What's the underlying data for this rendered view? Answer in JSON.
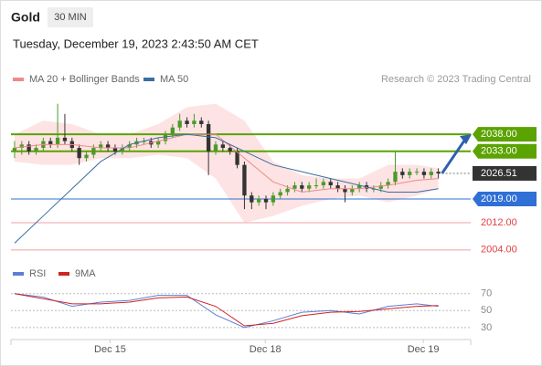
{
  "header": {
    "symbol": "Gold",
    "interval": "30 MIN",
    "timestamp": "Tuesday, December 19, 2023 2:43:50 AM CET"
  },
  "chart_data": {
    "type": "candlestick",
    "source": "Research © 2023 Trading Central",
    "ylim": [
      2001,
      2052
    ],
    "xlim": [
      -0.5,
      63.5
    ],
    "xticks": [
      {
        "value": 13.3,
        "label": "Dec 15"
      },
      {
        "value": 34.9,
        "label": "Dec 18"
      },
      {
        "value": 56.9,
        "label": "Dec 19"
      }
    ],
    "up_color": "#4c9a2a",
    "down_color": "#333333",
    "ohlc": [
      [
        2033,
        2036,
        2031,
        2034
      ],
      [
        2034,
        2036,
        2032,
        2035
      ],
      [
        2035,
        2036,
        2032,
        2033
      ],
      [
        2033,
        2035,
        2032,
        2034
      ],
      [
        2034,
        2037,
        2033,
        2036
      ],
      [
        2036,
        2037,
        2034,
        2035
      ],
      [
        2035,
        2047,
        2034,
        2037
      ],
      [
        2037,
        2044,
        2035,
        2036
      ],
      [
        2036,
        2037,
        2033,
        2034
      ],
      [
        2034,
        2035,
        2029,
        2031
      ],
      [
        2031,
        2033,
        2030,
        2032
      ],
      [
        2032,
        2035,
        2031,
        2034
      ],
      [
        2034,
        2036,
        2033,
        2035
      ],
      [
        2035,
        2036,
        2033,
        2034
      ],
      [
        2034,
        2035,
        2032,
        2033
      ],
      [
        2033,
        2035,
        2032,
        2034
      ],
      [
        2034,
        2036,
        2033,
        2035
      ],
      [
        2035,
        2037,
        2034,
        2036
      ],
      [
        2036,
        2037,
        2035,
        2036
      ],
      [
        2036,
        2037,
        2034,
        2035
      ],
      [
        2035,
        2037,
        2034,
        2036
      ],
      [
        2036,
        2039,
        2035,
        2038
      ],
      [
        2038,
        2041,
        2037,
        2040
      ],
      [
        2040,
        2044,
        2039,
        2042
      ],
      [
        2042,
        2043,
        2040,
        2041
      ],
      [
        2041,
        2044,
        2040,
        2042
      ],
      [
        2042,
        2043,
        2040,
        2041
      ],
      [
        2041,
        2042,
        2026,
        2033
      ],
      [
        2033,
        2036,
        2032,
        2035
      ],
      [
        2035,
        2036,
        2033,
        2034
      ],
      [
        2034,
        2035,
        2032,
        2033
      ],
      [
        2033,
        2034,
        2028,
        2029
      ],
      [
        2029,
        2030,
        2016,
        2020
      ],
      [
        2020,
        2021,
        2016,
        2018
      ],
      [
        2018,
        2020,
        2017,
        2019
      ],
      [
        2019,
        2020,
        2016,
        2018
      ],
      [
        2018,
        2021,
        2017,
        2020
      ],
      [
        2020,
        2022,
        2019,
        2021
      ],
      [
        2021,
        2023,
        2020,
        2022
      ],
      [
        2022,
        2024,
        2021,
        2023
      ],
      [
        2023,
        2024,
        2021,
        2022
      ],
      [
        2022,
        2024,
        2021,
        2023
      ],
      [
        2023,
        2025,
        2022,
        2023
      ],
      [
        2023,
        2025,
        2022,
        2024
      ],
      [
        2024,
        2025,
        2022,
        2023
      ],
      [
        2023,
        2024,
        2021,
        2022
      ],
      [
        2022,
        2023,
        2018,
        2021
      ],
      [
        2021,
        2023,
        2020,
        2022
      ],
      [
        2022,
        2024,
        2021,
        2023
      ],
      [
        2023,
        2024,
        2021,
        2022
      ],
      [
        2022,
        2023,
        2021,
        2022
      ],
      [
        2022,
        2024,
        2021,
        2023
      ],
      [
        2023,
        2025,
        2022,
        2024
      ],
      [
        2024,
        2033,
        2023,
        2027
      ],
      [
        2027,
        2028,
        2025,
        2026
      ],
      [
        2026,
        2028,
        2025,
        2027
      ],
      [
        2027,
        2028,
        2026,
        2027
      ],
      [
        2027,
        2028,
        2025,
        2026
      ],
      [
        2026,
        2028,
        2025,
        2027
      ],
      [
        2027,
        2028,
        2025,
        2026.5
      ]
    ],
    "line_x": [
      0,
      4,
      8,
      12,
      16,
      20,
      24,
      28,
      32,
      36,
      40,
      44,
      48,
      52,
      56,
      59
    ],
    "series": [
      {
        "name": "MA 20 + Bollinger Bands",
        "color": "#f08a8a",
        "band_color": "#fcdcdc",
        "values": [
          2034,
          2035,
          2035,
          2034,
          2034,
          2036,
          2038,
          2038,
          2031,
          2024,
          2021,
          2022,
          2022,
          2023,
          2024.5,
          2025
        ],
        "upper": [
          2038,
          2042,
          2041,
          2038,
          2038,
          2041,
          2046,
          2047,
          2042,
          2030,
          2026,
          2025,
          2025,
          2029,
          2029,
          2028
        ],
        "lower": [
          2030,
          2029,
          2029,
          2031,
          2031,
          2032,
          2031,
          2025,
          2012,
          2014,
          2017,
          2019,
          2020,
          2018,
          2020,
          2022
        ]
      },
      {
        "name": "MA 50",
        "color": "#3a6ea5",
        "values": [
          2006,
          2014,
          2022,
          2030,
          2035,
          2037,
          2038,
          2037,
          2033,
          2029,
          2027,
          2025,
          2023,
          2021,
          2021,
          2022
        ]
      }
    ],
    "levels": [
      {
        "value": 2038,
        "label": "2038.00",
        "color": "#5ba300",
        "style": "box"
      },
      {
        "value": 2033,
        "label": "2033.00",
        "color": "#5ba300",
        "style": "box"
      },
      {
        "value": 2026.51,
        "label": "2026.51",
        "color": "#333333",
        "style": "current"
      },
      {
        "value": 2019,
        "label": "2019.00",
        "color": "#2f6fd6",
        "style": "box"
      },
      {
        "value": 2012,
        "label": "2012.00",
        "color": "#e04040",
        "style": "text"
      },
      {
        "value": 2004,
        "label": "2004.00",
        "color": "#e04040",
        "style": "text"
      }
    ],
    "rsi": {
      "ylim": [
        18,
        88
      ],
      "yticks": [
        70,
        50,
        30
      ],
      "series": [
        {
          "name": "RSI",
          "color": "#5b7fd6",
          "values": [
            70,
            66,
            55,
            60,
            62,
            68,
            68,
            45,
            30,
            38,
            48,
            50,
            46,
            55,
            58,
            55
          ]
        },
        {
          "name": "9MA",
          "color": "#d22222",
          "values": [
            70,
            64,
            58,
            58,
            60,
            65,
            66,
            55,
            32,
            35,
            44,
            48,
            49,
            52,
            55,
            56
          ]
        }
      ]
    }
  }
}
